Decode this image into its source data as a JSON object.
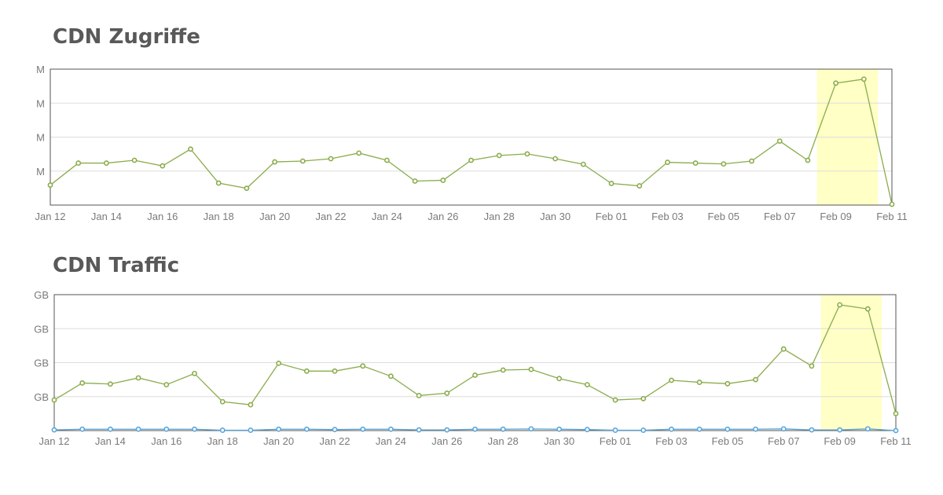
{
  "colors": {
    "green": "#8aac4c",
    "blue": "#5ba6d8",
    "highlight": "#ffffc6",
    "grid": "#dddddd",
    "frame": "#555555"
  },
  "chart_data": [
    {
      "type": "line",
      "title": "CDN Zugriffe",
      "x": [
        "Jan 12",
        "Jan 13",
        "Jan 14",
        "Jan 15",
        "Jan 16",
        "Jan 17",
        "Jan 18",
        "Jan 19",
        "Jan 20",
        "Jan 21",
        "Jan 22",
        "Jan 23",
        "Jan 24",
        "Jan 25",
        "Jan 26",
        "Jan 27",
        "Jan 28",
        "Jan 29",
        "Jan 30",
        "Jan 31",
        "Feb 01",
        "Feb 02",
        "Feb 03",
        "Feb 04",
        "Feb 05",
        "Feb 06",
        "Feb 07",
        "Feb 08",
        "Feb 09",
        "Feb 10",
        "Feb 11"
      ],
      "x_tick_labels": [
        "Jan 12",
        "Jan 14",
        "Jan 16",
        "Jan 18",
        "Jan 20",
        "Jan 22",
        "Jan 24",
        "Jan 26",
        "Jan 28",
        "Jan 30",
        "Feb 01",
        "Feb 03",
        "Feb 05",
        "Feb 07",
        "Feb 09",
        "Feb 11"
      ],
      "y_tick_labels": [
        "M",
        "M",
        "M",
        "M"
      ],
      "ylim": [
        0.6,
        4.0
      ],
      "highlight_range": [
        "Feb 08",
        "Feb 10"
      ],
      "grid": true,
      "series": [
        {
          "color": "#8aac4c",
          "values": [
            1.1,
            1.65,
            1.65,
            1.72,
            1.58,
            2.0,
            1.15,
            1.02,
            1.68,
            1.7,
            1.76,
            1.9,
            1.72,
            1.2,
            1.22,
            1.72,
            1.84,
            1.88,
            1.76,
            1.62,
            1.14,
            1.08,
            1.67,
            1.65,
            1.63,
            1.7,
            2.2,
            1.72,
            3.65,
            3.75,
            0.62
          ]
        }
      ]
    },
    {
      "type": "line",
      "title": "CDN Traffic",
      "x": [
        "Jan 12",
        "Jan 13",
        "Jan 14",
        "Jan 15",
        "Jan 16",
        "Jan 17",
        "Jan 18",
        "Jan 19",
        "Jan 20",
        "Jan 21",
        "Jan 22",
        "Jan 23",
        "Jan 24",
        "Jan 25",
        "Jan 26",
        "Jan 27",
        "Jan 28",
        "Jan 29",
        "Jan 30",
        "Jan 31",
        "Feb 01",
        "Feb 02",
        "Feb 03",
        "Feb 04",
        "Feb 05",
        "Feb 06",
        "Feb 07",
        "Feb 08",
        "Feb 09",
        "Feb 10",
        "Feb 11"
      ],
      "x_tick_labels": [
        "Jan 12",
        "Jan 14",
        "Jan 16",
        "Jan 18",
        "Jan 20",
        "Jan 22",
        "Jan 24",
        "Jan 26",
        "Jan 28",
        "Jan 30",
        "Feb 01",
        "Feb 03",
        "Feb 05",
        "Feb 07",
        "Feb 09",
        "Feb 11"
      ],
      "y_tick_labels": [
        "GB",
        "GB",
        "GB",
        "GB"
      ],
      "ylim": [
        0,
        4.0
      ],
      "highlight_range": [
        "Feb 08",
        "Feb 10"
      ],
      "grid": true,
      "series": [
        {
          "color": "#8aac4c",
          "values": [
            0.9,
            1.4,
            1.37,
            1.55,
            1.35,
            1.68,
            0.85,
            0.76,
            1.98,
            1.75,
            1.75,
            1.9,
            1.6,
            1.03,
            1.1,
            1.63,
            1.78,
            1.8,
            1.53,
            1.35,
            0.9,
            0.94,
            1.48,
            1.42,
            1.38,
            1.5,
            2.4,
            1.9,
            3.7,
            3.58,
            0.5
          ]
        },
        {
          "color": "#5ba6d8",
          "values": [
            0.02,
            0.04,
            0.04,
            0.04,
            0.04,
            0.04,
            0.01,
            0.01,
            0.04,
            0.04,
            0.03,
            0.04,
            0.04,
            0.02,
            0.02,
            0.04,
            0.04,
            0.05,
            0.04,
            0.03,
            0.01,
            0.01,
            0.04,
            0.04,
            0.04,
            0.04,
            0.05,
            0.02,
            0.02,
            0.05,
            0.0
          ]
        }
      ]
    }
  ]
}
